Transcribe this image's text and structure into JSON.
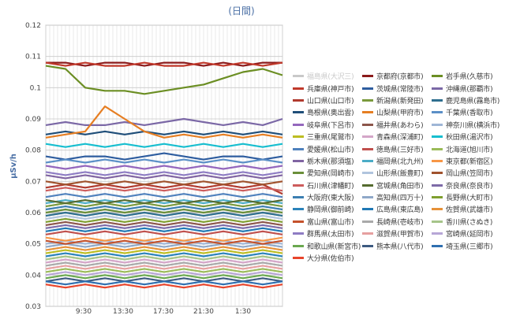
{
  "chart_data": {
    "type": "line",
    "title": "(日間)",
    "ylabel": "μSv/h",
    "xlabel": "",
    "ylim": [
      0.03,
      0.12
    ],
    "yticks": [
      "0.03",
      "0.04",
      "0.05",
      "0.06",
      "0.07",
      "0.08",
      "0.09",
      "0.1",
      "0.11",
      "0.12"
    ],
    "xticks": [
      "9:30",
      "13:30",
      "17:30",
      "21:30",
      "1:30"
    ],
    "grid": true,
    "legend_position": "right",
    "series": [
      {
        "name": "福島県(大沢三)",
        "color": "#c9c9c9",
        "values": [
          0.06,
          0.06
        ]
      },
      {
        "name": "京都府(京都市)",
        "color": "#8b1a1a",
        "values": [
          0.108,
          0.108,
          0.107,
          0.108,
          0.108,
          0.107,
          0.108,
          0.108,
          0.107,
          0.108,
          0.107,
          0.108,
          0.108
        ]
      },
      {
        "name": "岩手県(久慈市)",
        "color": "#6b8e23",
        "values": [
          0.107,
          0.106,
          0.1,
          0.099,
          0.099,
          0.098,
          0.099,
          0.1,
          0.101,
          0.103,
          0.105,
          0.106,
          0.104
        ]
      },
      {
        "name": "兵庫県(神戸市)",
        "color": "#c0392b",
        "values": [
          0.108,
          0.107,
          0.108,
          0.107,
          0.107,
          0.108,
          0.107,
          0.107,
          0.108,
          0.107,
          0.108,
          0.107,
          0.108
        ]
      },
      {
        "name": "茨城県(常陸市)",
        "color": "#2e5d9f",
        "values": [
          0.078,
          0.077,
          0.078,
          0.078,
          0.077,
          0.078,
          0.079,
          0.078,
          0.077,
          0.078,
          0.078,
          0.077,
          0.078
        ]
      },
      {
        "name": "沖縄県(那覇市)",
        "color": "#7b68a6",
        "values": [
          0.088,
          0.089,
          0.088,
          0.088,
          0.089,
          0.088,
          0.089,
          0.09,
          0.089,
          0.088,
          0.089,
          0.088,
          0.09
        ]
      },
      {
        "name": "山口県(山口市)",
        "color": "#b03a2e",
        "values": [
          0.068,
          0.069,
          0.068,
          0.069,
          0.068,
          0.069,
          0.068,
          0.069,
          0.068,
          0.069,
          0.068,
          0.069,
          0.066
        ]
      },
      {
        "name": "新潟県(新発田)",
        "color": "#7a9a3d",
        "values": [
          0.062,
          0.063,
          0.062,
          0.063,
          0.062,
          0.063,
          0.062,
          0.063,
          0.062,
          0.063,
          0.062,
          0.063,
          0.062
        ]
      },
      {
        "name": "鹿児島県(霧島市)",
        "color": "#2f6f8f",
        "values": [
          0.059,
          0.06,
          0.059,
          0.06,
          0.059,
          0.06,
          0.059,
          0.06,
          0.059,
          0.06,
          0.059,
          0.06,
          0.059
        ]
      },
      {
        "name": "島根県(奥出雲)",
        "color": "#1f4e79",
        "values": [
          0.085,
          0.086,
          0.085,
          0.086,
          0.085,
          0.086,
          0.085,
          0.086,
          0.085,
          0.086,
          0.085,
          0.086,
          0.085
        ]
      },
      {
        "name": "山梨県(甲府市)",
        "color": "#e67e22",
        "values": [
          0.084,
          0.085,
          0.086,
          0.094,
          0.09,
          0.086,
          0.084,
          0.085,
          0.084,
          0.085,
          0.084,
          0.085,
          0.084
        ]
      },
      {
        "name": "千葉県(香取市)",
        "color": "#5b8fc7",
        "values": [
          0.076,
          0.077,
          0.076,
          0.077,
          0.076,
          0.077,
          0.076,
          0.077,
          0.076,
          0.077,
          0.076,
          0.077,
          0.076
        ]
      },
      {
        "name": "岐阜県(下呂市)",
        "color": "#9467bd",
        "values": [
          0.075,
          0.074,
          0.075,
          0.074,
          0.075,
          0.074,
          0.075,
          0.074,
          0.075,
          0.074,
          0.075,
          0.074,
          0.075
        ]
      },
      {
        "name": "福井県(あわら)",
        "color": "#8c564b",
        "values": [
          0.056,
          0.057,
          0.056,
          0.057,
          0.056,
          0.057,
          0.056,
          0.057,
          0.056,
          0.057,
          0.056,
          0.057,
          0.056
        ]
      },
      {
        "name": "神奈川県(横浜市)",
        "color": "#9fb6d6",
        "values": [
          0.05,
          0.051,
          0.05,
          0.051,
          0.05,
          0.051,
          0.05,
          0.051,
          0.05,
          0.051,
          0.05,
          0.051,
          0.05
        ]
      },
      {
        "name": "三重県(尾鷲市)",
        "color": "#bcbd22",
        "values": [
          0.047,
          0.048,
          0.047,
          0.048,
          0.047,
          0.048,
          0.047,
          0.048,
          0.047,
          0.048,
          0.047,
          0.048,
          0.047
        ]
      },
      {
        "name": "青森県(深浦町)",
        "color": "#d4a6c8",
        "values": [
          0.044,
          0.045,
          0.044,
          0.045,
          0.044,
          0.045,
          0.044,
          0.045,
          0.044,
          0.045,
          0.044,
          0.045,
          0.044
        ]
      },
      {
        "name": "秋田県(湯沢市)",
        "color": "#17becf",
        "values": [
          0.082,
          0.081,
          0.082,
          0.081,
          0.082,
          0.081,
          0.082,
          0.081,
          0.082,
          0.081,
          0.082,
          0.081,
          0.082
        ]
      },
      {
        "name": "愛媛県(松山市)",
        "color": "#4f81bd",
        "values": [
          0.065,
          0.066,
          0.065,
          0.066,
          0.065,
          0.066,
          0.065,
          0.066,
          0.065,
          0.066,
          0.065,
          0.066,
          0.065
        ]
      },
      {
        "name": "徳島県(三好市)",
        "color": "#c0504d",
        "values": [
          0.053,
          0.054,
          0.053,
          0.054,
          0.053,
          0.054,
          0.053,
          0.054,
          0.053,
          0.054,
          0.053,
          0.054,
          0.053
        ]
      },
      {
        "name": "北海道(旭川市)",
        "color": "#9bbb59",
        "values": [
          0.041,
          0.042,
          0.041,
          0.042,
          0.041,
          0.042,
          0.041,
          0.042,
          0.041,
          0.042,
          0.041,
          0.042,
          0.041
        ]
      },
      {
        "name": "栃木県(那須塩)",
        "color": "#8064a2",
        "values": [
          0.072,
          0.071,
          0.072,
          0.071,
          0.072,
          0.071,
          0.072,
          0.071,
          0.072,
          0.071,
          0.072,
          0.071,
          0.072
        ]
      },
      {
        "name": "福岡県(北九州)",
        "color": "#4bacc6",
        "values": [
          0.063,
          0.064,
          0.063,
          0.064,
          0.063,
          0.064,
          0.063,
          0.064,
          0.063,
          0.064,
          0.063,
          0.064,
          0.063
        ]
      },
      {
        "name": "東京都(新宿区)",
        "color": "#f79646",
        "values": [
          0.052,
          0.051,
          0.052,
          0.051,
          0.052,
          0.051,
          0.052,
          0.051,
          0.052,
          0.051,
          0.052,
          0.051,
          0.052
        ]
      },
      {
        "name": "愛知県(岡崎市)",
        "color": "#6a8f3a",
        "values": [
          0.06,
          0.061,
          0.06,
          0.061,
          0.06,
          0.061,
          0.06,
          0.061,
          0.06,
          0.061,
          0.06,
          0.061,
          0.06
        ]
      },
      {
        "name": "山形県(飯豊町)",
        "color": "#b0c4de",
        "values": [
          0.058,
          0.059,
          0.058,
          0.059,
          0.058,
          0.059,
          0.058,
          0.059,
          0.058,
          0.059,
          0.058,
          0.059,
          0.058
        ]
      },
      {
        "name": "岡山県(笠岡市)",
        "color": "#a0522d",
        "values": [
          0.07,
          0.069,
          0.07,
          0.069,
          0.07,
          0.069,
          0.07,
          0.069,
          0.07,
          0.069,
          0.07,
          0.069,
          0.07
        ]
      },
      {
        "name": "石川県(津幡町)",
        "color": "#cd5c5c",
        "values": [
          0.067,
          0.068,
          0.067,
          0.068,
          0.067,
          0.068,
          0.067,
          0.068,
          0.067,
          0.068,
          0.067,
          0.068,
          0.067
        ]
      },
      {
        "name": "宮城県(角田市)",
        "color": "#556b2f",
        "values": [
          0.064,
          0.063,
          0.064,
          0.063,
          0.064,
          0.063,
          0.064,
          0.063,
          0.064,
          0.063,
          0.064,
          0.063,
          0.064
        ]
      },
      {
        "name": "奈良県(奈良市)",
        "color": "#7e6ba8",
        "values": [
          0.055,
          0.056,
          0.055,
          0.056,
          0.055,
          0.056,
          0.055,
          0.056,
          0.055,
          0.056,
          0.055,
          0.056,
          0.055
        ]
      },
      {
        "name": "大阪府(東大阪)",
        "color": "#3c7fb1",
        "values": [
          0.061,
          0.062,
          0.061,
          0.062,
          0.061,
          0.062,
          0.061,
          0.062,
          0.061,
          0.062,
          0.061,
          0.062,
          0.061
        ]
      },
      {
        "name": "高知県(四万十)",
        "color": "#8fa8c8",
        "values": [
          0.049,
          0.05,
          0.049,
          0.05,
          0.049,
          0.05,
          0.049,
          0.05,
          0.049,
          0.05,
          0.049,
          0.05,
          0.049
        ]
      },
      {
        "name": "長野県(大町市)",
        "color": "#7f9f2f",
        "values": [
          0.057,
          0.058,
          0.057,
          0.058,
          0.057,
          0.058,
          0.057,
          0.058,
          0.057,
          0.058,
          0.057,
          0.058,
          0.057
        ]
      },
      {
        "name": "静岡県(御前崎)",
        "color": "#2b83ba",
        "values": [
          0.046,
          0.047,
          0.046,
          0.047,
          0.046,
          0.047,
          0.046,
          0.047,
          0.046,
          0.047,
          0.046,
          0.047,
          0.046
        ]
      },
      {
        "name": "広島県(東広島)",
        "color": "#1f78b4",
        "values": [
          0.054,
          0.055,
          0.054,
          0.055,
          0.054,
          0.055,
          0.054,
          0.055,
          0.054,
          0.055,
          0.054,
          0.055,
          0.054
        ]
      },
      {
        "name": "佐賀県(武雄市)",
        "color": "#e69138",
        "values": [
          0.048,
          0.049,
          0.048,
          0.049,
          0.048,
          0.049,
          0.048,
          0.049,
          0.048,
          0.049,
          0.048,
          0.049,
          0.048
        ]
      },
      {
        "name": "富山県(富山市)",
        "color": "#c4512b",
        "values": [
          0.051,
          0.05,
          0.051,
          0.05,
          0.051,
          0.05,
          0.051,
          0.05,
          0.051,
          0.05,
          0.051,
          0.05,
          0.051
        ]
      },
      {
        "name": "長崎県(壱岐市)",
        "color": "#a9a9a9",
        "values": [
          0.043,
          0.044,
          0.043,
          0.044,
          0.043,
          0.044,
          0.043,
          0.044,
          0.043,
          0.044,
          0.043,
          0.044,
          0.043
        ]
      },
      {
        "name": "香川県(さぬき)",
        "color": "#a6c48a",
        "values": [
          0.045,
          0.046,
          0.045,
          0.046,
          0.045,
          0.046,
          0.045,
          0.046,
          0.045,
          0.046,
          0.045,
          0.046,
          0.045
        ]
      },
      {
        "name": "群馬県(太田市)",
        "color": "#8e7cc3",
        "values": [
          0.073,
          0.072,
          0.073,
          0.072,
          0.073,
          0.072,
          0.073,
          0.072,
          0.073,
          0.072,
          0.073,
          0.072,
          0.073
        ]
      },
      {
        "name": "滋賀県(甲賀市)",
        "color": "#e6a0a0",
        "values": [
          0.042,
          0.043,
          0.042,
          0.043,
          0.042,
          0.043,
          0.042,
          0.043,
          0.042,
          0.043,
          0.042,
          0.043,
          0.042
        ]
      },
      {
        "name": "宮崎県(延岡市)",
        "color": "#b7a6d6",
        "values": [
          0.04,
          0.041,
          0.04,
          0.041,
          0.04,
          0.041,
          0.04,
          0.041,
          0.04,
          0.041,
          0.04,
          0.041,
          0.04
        ]
      },
      {
        "name": "和歌山県(新宮市)",
        "color": "#6aa84f",
        "values": [
          0.039,
          0.04,
          0.039,
          0.04,
          0.039,
          0.04,
          0.039,
          0.04,
          0.039,
          0.04,
          0.039,
          0.04,
          0.039
        ]
      },
      {
        "name": "熊本県(八代市)",
        "color": "#3d5a80",
        "values": [
          0.038,
          0.039,
          0.038,
          0.039,
          0.038,
          0.039,
          0.038,
          0.039,
          0.038,
          0.039,
          0.038,
          0.039,
          0.038
        ]
      },
      {
        "name": "埼玉県(三郷市)",
        "color": "#2f6fb0",
        "values": [
          0.038,
          0.037,
          0.038,
          0.037,
          0.038,
          0.037,
          0.038,
          0.037,
          0.038,
          0.037,
          0.038,
          0.037,
          0.038
        ]
      },
      {
        "name": "大分県(佐伯市)",
        "color": "#e8452c",
        "values": [
          0.037,
          0.036,
          0.037,
          0.036,
          0.037,
          0.036,
          0.037,
          0.036,
          0.037,
          0.036,
          0.037,
          0.036,
          0.037
        ]
      }
    ]
  }
}
